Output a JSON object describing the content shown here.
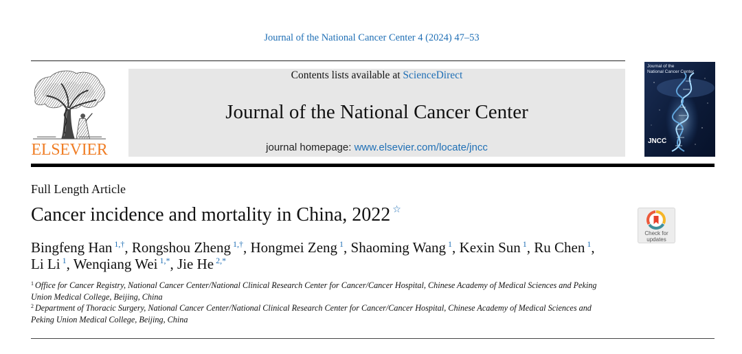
{
  "running_header": "Journal of the National Cancer Center 4 (2024) 47–53",
  "masthead": {
    "publisher_logo": "ELSEVIER",
    "contents_prefix": "Contents lists available at",
    "contents_link": "ScienceDirect",
    "journal_title": "Journal of the National Cancer Center",
    "homepage_label": "journal homepage:",
    "homepage_url": "www.elsevier.com/locate/jncc",
    "cover": {
      "title_lines": [
        "Journal of the",
        "National Cancer Center"
      ],
      "abbrev": "JNCC"
    }
  },
  "article": {
    "type": "Full Length Article",
    "title": "Cancer incidence and mortality in China, 2022",
    "title_note_mark": "☆",
    "authors": [
      {
        "name": "Bingfeng Han",
        "sup": "1,†",
        "punct": ","
      },
      {
        "name": "Rongshou Zheng",
        "sup": "1,†",
        "punct": ","
      },
      {
        "name": "Hongmei Zeng",
        "sup": "1",
        "punct": ","
      },
      {
        "name": "Shaoming Wang",
        "sup": "1",
        "punct": ","
      },
      {
        "name": "Kexin Sun",
        "sup": "1",
        "punct": ","
      },
      {
        "name": "Ru Chen",
        "sup": "1",
        "punct": ","
      },
      {
        "name": "Li Li",
        "sup": "1",
        "punct": ","
      },
      {
        "name": "Wenqiang Wei",
        "sup": "1,*",
        "punct": ","
      },
      {
        "name": "Jie He",
        "sup": "2,*"
      }
    ]
  },
  "affiliations": [
    {
      "num": "1",
      "lines": [
        "Office for Cancer Registry, National Cancer Center/National Clinical Research Center for Cancer/Cancer Hospital, Chinese Academy of Medical Sciences and Peking",
        "Union Medical College, Beijing, China"
      ]
    },
    {
      "num": "2",
      "lines": [
        "Department of Thoracic Surgery, National Cancer Center/National Clinical Research Center for Cancer/Cancer Hospital, Chinese Academy of Medical Sciences and",
        "Peking Union Medical College, Beijing, China"
      ]
    }
  ],
  "check_updates": {
    "line1": "Check for",
    "line2": "updates"
  },
  "colors": {
    "link": "#1f6fb5",
    "publisher_orange": "#f07e26",
    "masthead_background": "#e7e7e7",
    "cover_background": "#0d1c3a"
  },
  "icons": {
    "publisher_logo": "elsevier-tree-icon",
    "cover": "journal-cover-image",
    "check_updates": "crossmark-icon",
    "title_note": "star-icon"
  }
}
